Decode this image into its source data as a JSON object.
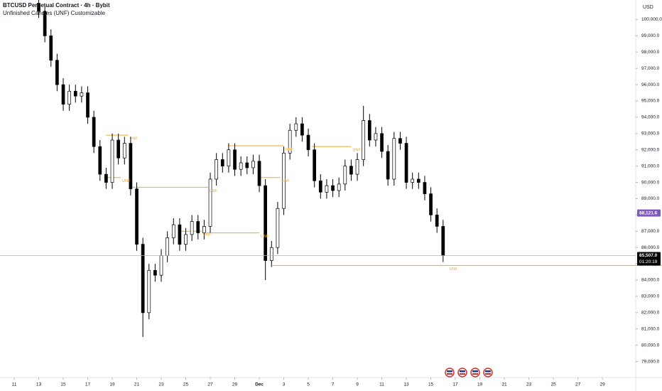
{
  "chart_data": {
    "type": "candlestick",
    "title": "BTCUSD Perpetual Contract · 4h · Bybit",
    "subtitle": "Unfinished Candles (UNF) Customizable",
    "currency": "USD",
    "x": [
      2,
      2.5,
      3,
      3.5,
      4,
      4.5,
      5,
      5.5,
      6,
      6.5,
      7,
      7.5,
      8,
      8.5,
      9,
      9.5,
      10,
      10.5,
      11,
      11.5,
      12,
      12.5,
      13,
      13.5,
      14,
      14.5,
      15,
      15.5,
      16,
      16.5,
      17,
      17.5,
      18,
      18.5,
      19,
      19.5,
      20,
      20.5,
      21,
      21.5,
      22,
      22.5,
      23,
      23.5,
      24,
      24.5,
      25,
      25.5,
      26,
      26.5,
      27,
      27.5,
      28,
      28.5,
      29,
      29.5,
      30,
      30.5,
      31,
      31.5,
      32,
      32.5,
      33,
      33.5,
      34,
      34.5,
      35
    ],
    "opens": [
      101000,
      100500,
      99000,
      97500,
      96000,
      94800,
      95600,
      95300,
      95500,
      94000,
      92200,
      90500,
      90000,
      92600,
      91500,
      92400,
      89600,
      86200,
      82000,
      84600,
      84300,
      85500,
      86600,
      87400,
      86200,
      86800,
      87600,
      86900,
      87300,
      90200,
      91400,
      91000,
      92000,
      90800,
      91200,
      90900,
      91300,
      89800,
      85200,
      86000,
      88400,
      91800,
      93200,
      93600,
      92900,
      92000,
      90100,
      89400,
      89800,
      89500,
      89900,
      91000,
      90500,
      91400,
      93800,
      92600,
      93000,
      91900,
      90200,
      92700,
      92400,
      90000,
      90200,
      90000,
      89300,
      88000,
      87300
    ],
    "highs": [
      101400,
      100900,
      99400,
      97900,
      96400,
      96000,
      96000,
      95900,
      95900,
      94400,
      92600,
      90900,
      93000,
      93000,
      92800,
      92800,
      90000,
      86600,
      85000,
      85000,
      85900,
      87000,
      87800,
      87800,
      87200,
      88000,
      88000,
      87700,
      90600,
      91800,
      91800,
      92400,
      92400,
      91600,
      91600,
      91700,
      91700,
      90200,
      86400,
      88800,
      92200,
      93600,
      94000,
      94000,
      93300,
      92400,
      90500,
      90200,
      90200,
      90300,
      91400,
      91400,
      91800,
      94700,
      94200,
      93400,
      93400,
      92300,
      93100,
      93100,
      92800,
      90600,
      90600,
      90400,
      89700,
      88400,
      87700
    ],
    "lows": [
      100100,
      98600,
      97100,
      95600,
      94400,
      94400,
      94900,
      94900,
      93600,
      91800,
      90100,
      89600,
      89600,
      91100,
      91100,
      89200,
      85800,
      80500,
      81600,
      83900,
      83900,
      85100,
      86200,
      85800,
      85800,
      86400,
      86500,
      86500,
      86900,
      89800,
      90600,
      90600,
      90400,
      90400,
      90500,
      90500,
      89400,
      84000,
      84800,
      85600,
      88000,
      91400,
      92800,
      92500,
      91600,
      89700,
      89000,
      89000,
      89100,
      89100,
      89500,
      90100,
      90100,
      91000,
      92200,
      92200,
      91500,
      89800,
      89800,
      92000,
      89600,
      89600,
      89600,
      88900,
      87600,
      86900,
      85107
    ],
    "closes": [
      100500,
      99000,
      97500,
      96000,
      94800,
      95600,
      95300,
      95500,
      94000,
      92200,
      90500,
      90000,
      92600,
      91500,
      92400,
      89600,
      86200,
      82000,
      84600,
      84300,
      85500,
      86600,
      87400,
      86200,
      86800,
      87600,
      86900,
      87300,
      90200,
      91400,
      91000,
      92000,
      90800,
      91200,
      90900,
      91300,
      89800,
      85200,
      86000,
      88400,
      91800,
      93200,
      93600,
      92900,
      92000,
      90100,
      89400,
      89800,
      89500,
      89900,
      91000,
      90500,
      91400,
      93800,
      92600,
      93000,
      91900,
      90200,
      92700,
      92400,
      90000,
      90200,
      90000,
      89300,
      88000,
      87300,
      85507
    ],
    "up_color": "#ffffff",
    "down_color": "#000000",
    "xlim": [
      -1.16,
      50.72
    ],
    "xticks": [
      {
        "value": 0,
        "label": "11"
      },
      {
        "value": 2,
        "label": "13"
      },
      {
        "value": 4,
        "label": "15"
      },
      {
        "value": 6,
        "label": "17"
      },
      {
        "value": 8,
        "label": "19"
      },
      {
        "value": 10,
        "label": "21"
      },
      {
        "value": 12,
        "label": "23"
      },
      {
        "value": 14,
        "label": "25"
      },
      {
        "value": 16,
        "label": "27"
      },
      {
        "value": 18,
        "label": "29"
      },
      {
        "value": 20,
        "label": "Dec"
      },
      {
        "value": 22,
        "label": "3"
      },
      {
        "value": 24,
        "label": "5"
      },
      {
        "value": 26,
        "label": "7"
      },
      {
        "value": 28,
        "label": "9"
      },
      {
        "value": 30,
        "label": "11"
      },
      {
        "value": 32,
        "label": "13"
      },
      {
        "value": 34,
        "label": "15"
      },
      {
        "value": 36,
        "label": "17"
      },
      {
        "value": 38,
        "label": "19"
      },
      {
        "value": 40,
        "label": "21"
      },
      {
        "value": 42,
        "label": "23"
      },
      {
        "value": 44,
        "label": "25"
      },
      {
        "value": 46,
        "label": "27"
      },
      {
        "value": 48,
        "label": "29"
      }
    ],
    "ylim": [
      78500,
      101200
    ],
    "yticks": [
      {
        "value": 79000,
        "label": "79,000.0"
      },
      {
        "value": 80000,
        "label": "80,000.0"
      },
      {
        "value": 81000,
        "label": "81,000.0"
      },
      {
        "value": 82000,
        "label": "82,000.0"
      },
      {
        "value": 83000,
        "label": "83,000.0"
      },
      {
        "value": 84000,
        "label": "84,000.0"
      },
      {
        "value": 85000,
        "label": "85,000.0"
      },
      {
        "value": 86000,
        "label": "86,000.0"
      },
      {
        "value": 87000,
        "label": "87,000.0"
      },
      {
        "value": 88000,
        "label": "88,000.0"
      },
      {
        "value": 89000,
        "label": "89,000.0"
      },
      {
        "value": 90000,
        "label": "90,000.0"
      },
      {
        "value": 91000,
        "label": "91,000.0"
      },
      {
        "value": 92000,
        "label": "92,000.0"
      },
      {
        "value": 93000,
        "label": "93,000.0"
      },
      {
        "value": 94000,
        "label": "94,000.0"
      },
      {
        "value": 95000,
        "label": "95,000.0"
      },
      {
        "value": 96000,
        "label": "96,000.0"
      },
      {
        "value": 97000,
        "label": "97,000.0"
      },
      {
        "value": 98000,
        "label": "98,000.0"
      },
      {
        "value": 99000,
        "label": "99,000.0"
      },
      {
        "value": 100000,
        "label": "100,000.0"
      }
    ],
    "unf_color": "#f5a623",
    "unf_levels": [
      {
        "price": 92900,
        "start": 7.5,
        "end": 9.3,
        "label": "UNF"
      },
      {
        "price": 90300,
        "start": 7.3,
        "end": 8.7,
        "label": "UNF"
      },
      {
        "price": 89700,
        "start": 9.6,
        "end": 15.8,
        "label": "UNF"
      },
      {
        "price": 87000,
        "start": 13.6,
        "end": 15.3,
        "label": "UNF"
      },
      {
        "price": 86900,
        "start": 15.7,
        "end": 20,
        "label": "UNF"
      },
      {
        "price": 92250,
        "start": 17.5,
        "end": 22,
        "label": "UNF"
      },
      {
        "price": 90300,
        "start": 20,
        "end": 21.7,
        "label": "UNF"
      },
      {
        "price": 92200,
        "start": 24.3,
        "end": 27.5,
        "label": "UNF"
      },
      {
        "price": 84900,
        "start": 20.9,
        "end": 53,
        "label": "UNF"
      }
    ],
    "last_price": {
      "value": 85507,
      "label": "85,507.0"
    },
    "countdown": "01:20:19",
    "marker": {
      "value": 88121.6,
      "label": "88,121.6",
      "color": "#7e57c2"
    }
  }
}
